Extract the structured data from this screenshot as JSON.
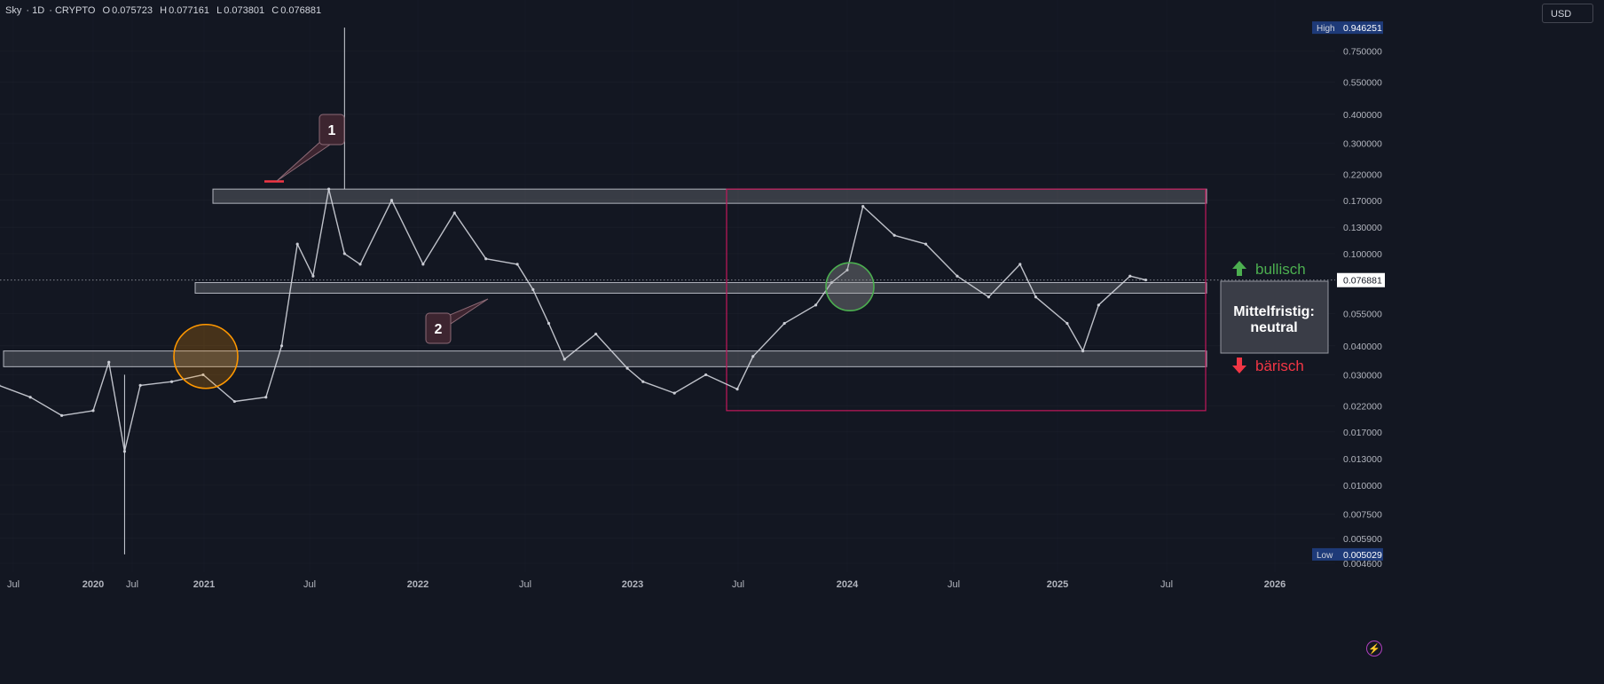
{
  "header": {
    "symbol": "Sky",
    "interval": "1D",
    "exchange": "CRYPTO",
    "open_label": "O",
    "open": "0.075723",
    "high_label": "H",
    "high": "0.077161",
    "low_label": "L",
    "low": "0.073801",
    "close_label": "C",
    "close": "0.076881"
  },
  "currency": "USD",
  "colors": {
    "background": "#131722",
    "grid": "#2a2e39",
    "text": "#b2b5be",
    "price_line": "#d1d4dc",
    "zone_fill": "#ffffff",
    "box_border": "#c2185b",
    "bull": "#4caf50",
    "bear": "#f23645",
    "orange": "#ff9800",
    "callout": "#3d2530"
  },
  "chart_data": {
    "type": "line",
    "title": "",
    "xlabel": "",
    "ylabel": "",
    "yscale": "log",
    "ylim": [
      0.0044,
      1.0
    ],
    "y_ticks": [
      "0.946251",
      "0.750000",
      "0.550000",
      "0.400000",
      "0.300000",
      "0.220000",
      "0.170000",
      "0.130000",
      "0.100000",
      "0.076881",
      "0.055000",
      "0.040000",
      "0.030000",
      "0.022000",
      "0.017000",
      "0.013000",
      "0.010000",
      "0.007500",
      "0.005900",
      "0.005029",
      "0.004600"
    ],
    "x_ticks": [
      "Jul",
      "2020",
      "Jul",
      "2021",
      "Jul",
      "2022",
      "Jul",
      "2023",
      "Jul",
      "2024",
      "Jul",
      "2025",
      "Jul",
      "2026"
    ],
    "high_label": "High",
    "high_value": "0.946251",
    "low_label": "Low",
    "low_value": "0.005029",
    "last_price": "0.076881",
    "series": [
      {
        "x": [
          "2019-07",
          "2019-09",
          "2019-11",
          "2020-01",
          "2020-02",
          "2020-03",
          "2020-04",
          "2020-06",
          "2020-08",
          "2020-10",
          "2020-12",
          "2021-01",
          "2021-02",
          "2021-03",
          "2021-04",
          "2021-05",
          "2021-06",
          "2021-08",
          "2021-10",
          "2021-12",
          "2022-02",
          "2022-04",
          "2022-05",
          "2022-06",
          "2022-07",
          "2022-09",
          "2022-11",
          "2022-12",
          "2023-02",
          "2023-04",
          "2023-06",
          "2023-07",
          "2023-09",
          "2023-11",
          "2023-12",
          "2024-01",
          "2024-02",
          "2024-04",
          "2024-06",
          "2024-08",
          "2024-10",
          "2024-12",
          "2025-01",
          "2025-03",
          "2025-04",
          "2025-05",
          "2025-07",
          "2025-08"
        ],
        "values": [
          0.027,
          0.024,
          0.02,
          0.021,
          0.034,
          0.014,
          0.027,
          0.028,
          0.03,
          0.023,
          0.024,
          0.04,
          0.11,
          0.08,
          0.19,
          0.1,
          0.09,
          0.17,
          0.09,
          0.15,
          0.095,
          0.09,
          0.07,
          0.05,
          0.035,
          0.045,
          0.032,
          0.028,
          0.025,
          0.03,
          0.026,
          0.036,
          0.05,
          0.06,
          0.075,
          0.085,
          0.16,
          0.12,
          0.11,
          0.08,
          0.065,
          0.09,
          0.065,
          0.05,
          0.038,
          0.06,
          0.08,
          0.077
        ]
      }
    ],
    "annotations": {
      "callout_1": "1",
      "callout_2": "2",
      "bull_label": "bullisch",
      "bear_label": "bärisch",
      "status_line1": "Mittelfristig:",
      "status_line2": "neutral"
    }
  }
}
